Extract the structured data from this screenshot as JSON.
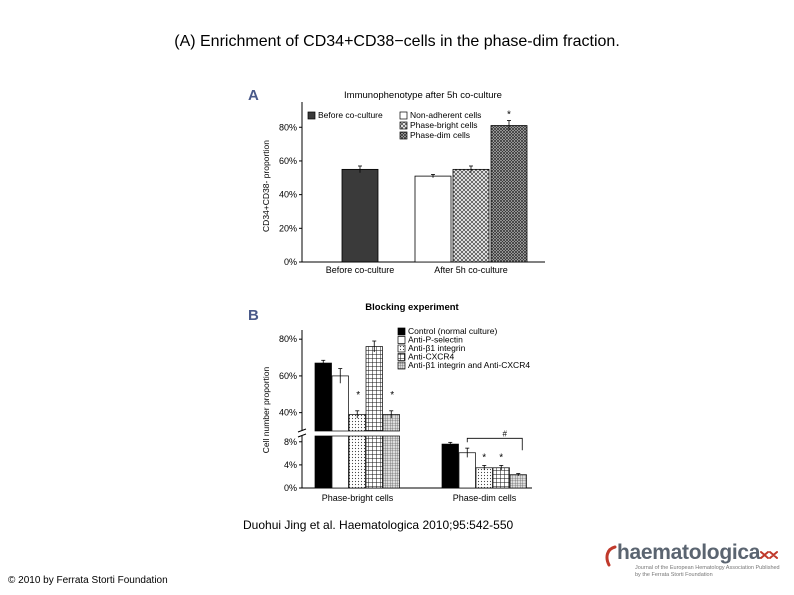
{
  "slide": {
    "title": "(A) Enrichment of CD34+CD38−cells in the phase-dim fraction.",
    "citation": "Duohui Jing et al. Haematologica 2010;95:542-550",
    "copyright": "© 2010 by Ferrata Storti Foundation",
    "logo_text": "haematologica",
    "logo_subtext": "Journal of the European Hematology Association Published by the Ferrata Storti Foundation"
  },
  "chart_data": [
    {
      "panel_label": "A",
      "type": "bar",
      "title": "Immunophenotype after 5h co-culture",
      "ylabel": "CD34+CD38- proportion",
      "ylim": [
        0,
        95
      ],
      "y_ticks": [
        "80%",
        "60%",
        "40%",
        "20%",
        "0%"
      ],
      "y_tick_values": [
        80,
        60,
        40,
        20,
        0
      ],
      "categories": [
        "Before co-culture",
        "After 5h co-culture"
      ],
      "series": [
        {
          "name": "Before co-culture",
          "pattern": "solid-dark",
          "values": [
            55,
            null
          ],
          "error": [
            2,
            null
          ],
          "star": [
            false,
            false
          ]
        },
        {
          "name": "Non-adherent cells",
          "pattern": "white",
          "values": [
            null,
            51
          ],
          "error": [
            null,
            1
          ],
          "star": [
            false,
            false
          ]
        },
        {
          "name": "Phase-bright cells",
          "pattern": "crosshatch",
          "values": [
            null,
            55
          ],
          "error": [
            null,
            2
          ],
          "star": [
            false,
            false
          ]
        },
        {
          "name": "Phase-dim cells",
          "pattern": "dense-hatch",
          "values": [
            null,
            81
          ],
          "error": [
            null,
            3
          ],
          "star": [
            false,
            true
          ]
        }
      ],
      "star_label": "*",
      "legend_position": "top-right"
    },
    {
      "panel_label": "B",
      "type": "bar",
      "title": "Blocking experiment",
      "ylabel": "Cell number proportion",
      "y_axis_break": true,
      "y_ticks_upper": [
        "80%",
        "60%",
        "40%"
      ],
      "y_tick_values_upper": [
        80,
        60,
        40
      ],
      "y_ticks_lower": [
        "8%",
        "4%",
        "0%"
      ],
      "y_tick_values_lower": [
        8,
        4,
        0
      ],
      "categories": [
        "Phase-bright cells",
        "Phase-dim cells"
      ],
      "series": [
        {
          "name": "Control (normal culture)",
          "pattern": "solid",
          "values": [
            67,
            7.6
          ],
          "error": [
            1.5,
            0.3
          ],
          "star": [
            false,
            false
          ]
        },
        {
          "name": "Anti-P-selectin",
          "pattern": "white",
          "values": [
            60,
            6.1
          ],
          "error": [
            4,
            0.8
          ],
          "star": [
            false,
            false
          ]
        },
        {
          "name": "Anti-β1 integrin",
          "pattern": "dots",
          "values": [
            39,
            3.5
          ],
          "error": [
            2,
            0.4
          ],
          "star": [
            true,
            true
          ]
        },
        {
          "name": "Anti-CXCR4",
          "pattern": "grid",
          "values": [
            76,
            3.5
          ],
          "error": [
            3,
            0.4
          ],
          "star": [
            false,
            true
          ]
        },
        {
          "name": "Anti-β1 integrin and Anti-CXCR4",
          "pattern": "fine-grid",
          "values": [
            39,
            2.3
          ],
          "error": [
            2,
            0.2
          ],
          "star": [
            true,
            false
          ]
        }
      ],
      "star_label": "*",
      "bracket_label": "#",
      "legend_position": "top-right"
    }
  ]
}
